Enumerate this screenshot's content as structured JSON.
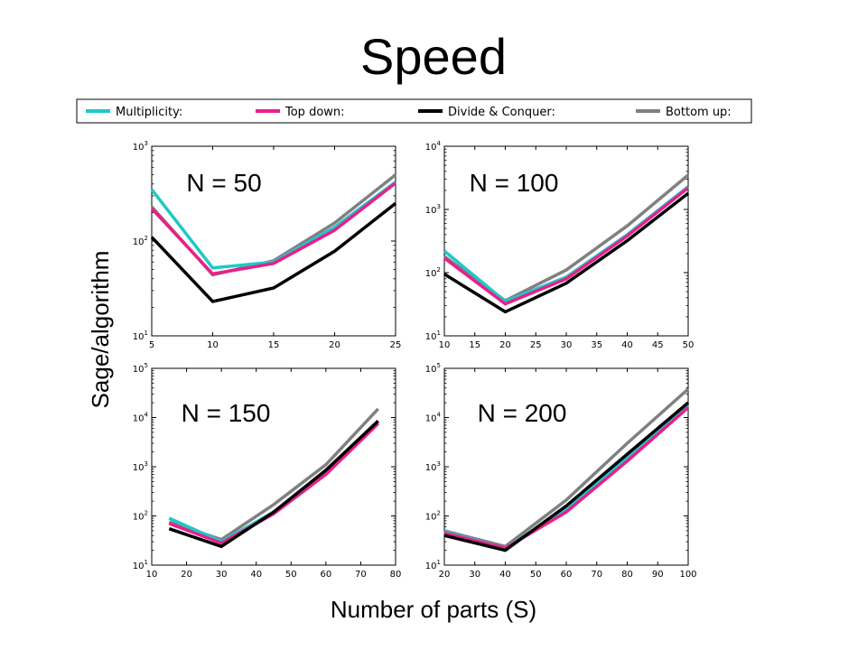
{
  "slide": {
    "title": "Speed",
    "xlabel": "Number of parts (S)",
    "ylabel": "Sage/algorithm"
  },
  "legend": [
    {
      "name": "Multiplicity:",
      "color": "#1fc8c8"
    },
    {
      "name": "Top down:",
      "color": "#e8208a"
    },
    {
      "name": "Divide & Conquer:",
      "color": "#000000"
    },
    {
      "name": "Bottom up:",
      "color": "#808080"
    }
  ],
  "chart_data": [
    {
      "type": "line",
      "title": "N = 50",
      "yscale": "log",
      "xlim": [
        5,
        25
      ],
      "ylim": [
        10,
        1000
      ],
      "xticks": [
        5,
        10,
        15,
        20,
        25
      ],
      "yticks": [
        {
          "value": 10,
          "base": "10",
          "exp": "1"
        },
        {
          "value": 100,
          "base": "10",
          "exp": "2"
        },
        {
          "value": 1000,
          "base": "10",
          "exp": "3"
        }
      ],
      "x": [
        5,
        10,
        15,
        20,
        25
      ],
      "series": [
        {
          "name": "Multiplicity:",
          "values": [
            350,
            52,
            60,
            140,
            420
          ]
        },
        {
          "name": "Top down:",
          "values": [
            220,
            45,
            58,
            130,
            410
          ]
        },
        {
          "name": "Divide & Conquer:",
          "values": [
            110,
            23,
            32,
            78,
            250
          ]
        },
        {
          "name": "Bottom up:",
          "values": [
            230,
            44,
            62,
            155,
            500
          ]
        }
      ]
    },
    {
      "type": "line",
      "title": "N = 100",
      "yscale": "log",
      "xlim": [
        10,
        50
      ],
      "ylim": [
        10,
        10000
      ],
      "xticks": [
        10,
        15,
        20,
        25,
        30,
        35,
        40,
        45,
        50
      ],
      "yticks": [
        {
          "value": 10,
          "base": "10",
          "exp": "1"
        },
        {
          "value": 100,
          "base": "10",
          "exp": "2"
        },
        {
          "value": 1000,
          "base": "10",
          "exp": "3"
        },
        {
          "value": 10000,
          "base": "10",
          "exp": "4"
        }
      ],
      "x": [
        10,
        20,
        30,
        40,
        50
      ],
      "series": [
        {
          "name": "Multiplicity:",
          "values": [
            220,
            35,
            85,
            400,
            2300
          ]
        },
        {
          "name": "Top down:",
          "values": [
            170,
            32,
            80,
            380,
            2200
          ]
        },
        {
          "name": "Divide & Conquer:",
          "values": [
            95,
            24,
            68,
            320,
            1800
          ]
        },
        {
          "name": "Bottom up:",
          "values": [
            180,
            36,
            110,
            550,
            3500
          ]
        }
      ]
    },
    {
      "type": "line",
      "title": "N = 150",
      "yscale": "log",
      "xlim": [
        10,
        80
      ],
      "ylim": [
        10,
        100000
      ],
      "xticks": [
        10,
        20,
        30,
        40,
        50,
        60,
        70,
        80
      ],
      "yticks": [
        {
          "value": 10,
          "base": "10",
          "exp": "1"
        },
        {
          "value": 100,
          "base": "10",
          "exp": "2"
        },
        {
          "value": 1000,
          "base": "10",
          "exp": "3"
        },
        {
          "value": 10000,
          "base": "10",
          "exp": "4"
        },
        {
          "value": 100000,
          "base": "10",
          "exp": "5"
        }
      ],
      "x": [
        15,
        30,
        45,
        60,
        75
      ],
      "series": [
        {
          "name": "Multiplicity:",
          "values": [
            90,
            30,
            120,
            800,
            8000
          ]
        },
        {
          "name": "Top down:",
          "values": [
            70,
            28,
            110,
            700,
            7500
          ]
        },
        {
          "name": "Divide & Conquer:",
          "values": [
            55,
            24,
            120,
            850,
            8500
          ]
        },
        {
          "name": "Bottom up:",
          "values": [
            75,
            33,
            170,
            1100,
            15000
          ]
        }
      ]
    },
    {
      "type": "line",
      "title": "N = 200",
      "yscale": "log",
      "xlim": [
        20,
        100
      ],
      "ylim": [
        10,
        100000
      ],
      "xticks": [
        20,
        30,
        40,
        50,
        60,
        70,
        80,
        90,
        100
      ],
      "yticks": [
        {
          "value": 10,
          "base": "10",
          "exp": "1"
        },
        {
          "value": 100,
          "base": "10",
          "exp": "2"
        },
        {
          "value": 1000,
          "base": "10",
          "exp": "3"
        },
        {
          "value": 10000,
          "base": "10",
          "exp": "4"
        },
        {
          "value": 100000,
          "base": "10",
          "exp": "5"
        }
      ],
      "x": [
        20,
        40,
        60,
        80,
        100
      ],
      "series": [
        {
          "name": "Multiplicity:",
          "values": [
            48,
            22,
            140,
            1500,
            18000
          ]
        },
        {
          "name": "Top down:",
          "values": [
            45,
            22,
            120,
            1300,
            16000
          ]
        },
        {
          "name": "Divide & Conquer:",
          "values": [
            40,
            20,
            160,
            1800,
            20000
          ]
        },
        {
          "name": "Bottom up:",
          "values": [
            50,
            24,
            210,
            3000,
            38000
          ]
        }
      ]
    }
  ]
}
